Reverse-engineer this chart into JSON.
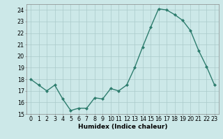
{
  "x": [
    0,
    1,
    2,
    3,
    4,
    5,
    6,
    7,
    8,
    9,
    10,
    11,
    12,
    13,
    14,
    15,
    16,
    17,
    18,
    19,
    20,
    21,
    22,
    23
  ],
  "y": [
    18.0,
    17.5,
    17.0,
    17.5,
    16.3,
    15.3,
    15.5,
    15.5,
    16.4,
    16.3,
    17.2,
    17.0,
    17.5,
    19.0,
    20.8,
    22.5,
    24.1,
    24.0,
    23.6,
    23.1,
    22.2,
    20.5,
    19.1,
    17.5
  ],
  "line_color": "#2e7d6e",
  "marker": "D",
  "marker_size": 2.0,
  "linewidth": 1.0,
  "bg_color": "#cce8e8",
  "grid_color": "#aacaca",
  "xlabel": "Humidex (Indice chaleur)",
  "xlim": [
    -0.5,
    23.5
  ],
  "ylim": [
    15,
    24.5
  ],
  "yticks": [
    15,
    16,
    17,
    18,
    19,
    20,
    21,
    22,
    23,
    24
  ],
  "xticks": [
    0,
    1,
    2,
    3,
    4,
    5,
    6,
    7,
    8,
    9,
    10,
    11,
    12,
    13,
    14,
    15,
    16,
    17,
    18,
    19,
    20,
    21,
    22,
    23
  ],
  "xlabel_fontsize": 6.5,
  "tick_fontsize": 5.8
}
